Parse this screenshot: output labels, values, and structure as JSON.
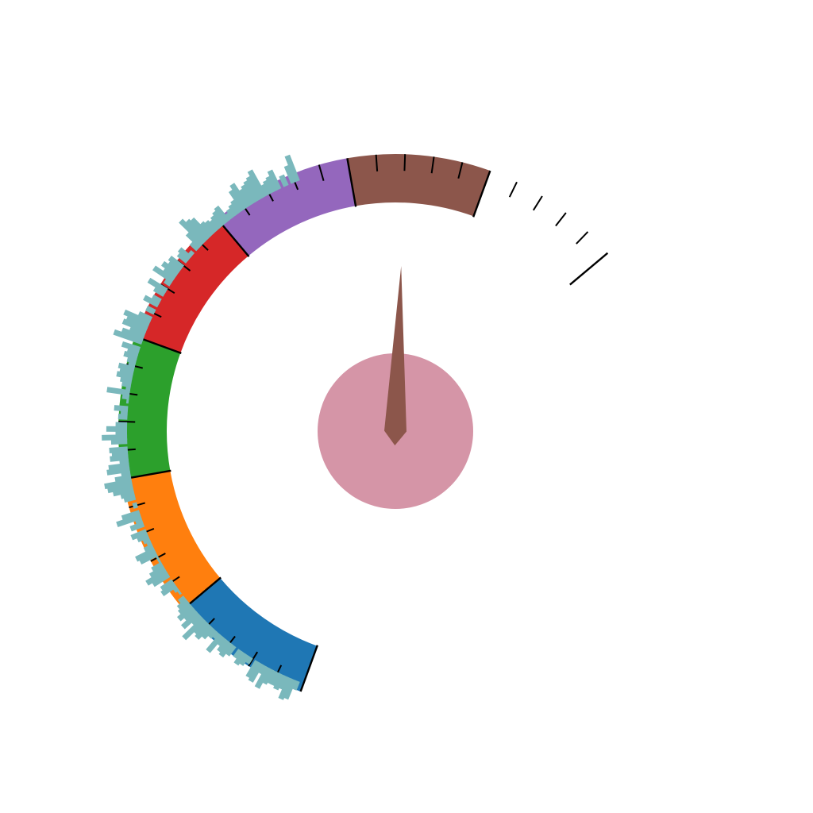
{
  "chart_data": {
    "type": "gauge",
    "title": "",
    "colors": {
      "background": "#ffffff",
      "hub": "#d595a7",
      "needle": "#8c564b",
      "ticks": "#000000",
      "histogram": "#7ab8bc"
    },
    "gauge": {
      "scale_min": 0,
      "scale_max": 7,
      "major_tick_step": 1,
      "minor_tick_step": 0.2,
      "needle_value": 5.4,
      "bands": [
        {
          "from": 0,
          "to": 1,
          "color": "#1f77b4"
        },
        {
          "from": 1,
          "to": 2,
          "color": "#ff7f0e"
        },
        {
          "from": 2,
          "to": 3,
          "color": "#2ca02c"
        },
        {
          "from": 3,
          "to": 4,
          "color": "#d62728"
        },
        {
          "from": 4,
          "to": 5,
          "color": "#9467bd"
        },
        {
          "from": 5,
          "to": 6,
          "color": "#8c564b"
        }
      ]
    },
    "histogram": {
      "bin_count": 160,
      "values": [
        0.6,
        0.4,
        0.0,
        0.25,
        0.0,
        0.45,
        0.35,
        0.3,
        0.25,
        0.65,
        0.55,
        0.5,
        0.45,
        0.4,
        0.6,
        0.5,
        0.3,
        0.25,
        0.2,
        0.15,
        0.4,
        0.35,
        0.3,
        0.25,
        0.3,
        0.35,
        0.55,
        0.6,
        0.7,
        0.4,
        0.2,
        0.0,
        0.1,
        0.3,
        0.25,
        0.0,
        0.35,
        0.3,
        0.4,
        0.3,
        0.5,
        0.15,
        0.0,
        0.45,
        0.25,
        0.0,
        0.2,
        0.35,
        0.0,
        0.2,
        0.0,
        0.3,
        0.6,
        0.5,
        0.55,
        0.35,
        0.5,
        0.65,
        0.0,
        0.4,
        0.25,
        0.3,
        0.2,
        0.15,
        0.35,
        0.3,
        0.35,
        0.25,
        0.2,
        0.1,
        0.5,
        0.15,
        0.05,
        0.0,
        0.3,
        0.15,
        0.2,
        0.0,
        0.25,
        0.45,
        0.25,
        0.55,
        0.35,
        0.0,
        0.4,
        0.35,
        0.4,
        0.2,
        0.45,
        0.5,
        0.2,
        0.35,
        0.6,
        0.55,
        0.45,
        0.3,
        0.25,
        0.0,
        0.1,
        0.0,
        0.4,
        0.55,
        0.15,
        0.3,
        0.0,
        0.35,
        0.25,
        0.15,
        0.1,
        0.2,
        0.45,
        0.4,
        0.05,
        0.05,
        0.25,
        0.35,
        0.5,
        0.4,
        0.0,
        0.3,
        0.35,
        0.1,
        0.05,
        0.0,
        0.15,
        0.25,
        0.3,
        0.4,
        0.3,
        0.45,
        0.25,
        0.6,
        0.35,
        0.4,
        0.3,
        0.2,
        0.15,
        0.45,
        0.2,
        0.3,
        0.35,
        0.25,
        0.0,
        0.2,
        0.3,
        0.25,
        0.15,
        0.0,
        0.4,
        0.45,
        0.2,
        0.5,
        0.35,
        0.3,
        0.3,
        0.35,
        0.3,
        0.5,
        0.45,
        0.2
      ]
    }
  }
}
